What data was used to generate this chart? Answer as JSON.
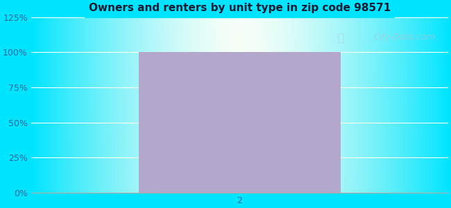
{
  "title": "Owners and renters by unit type in zip code 98571",
  "title_fontsize": 11,
  "bar_x": [
    2
  ],
  "bar_heights": [
    100
  ],
  "bar_color": "#b3a8cc",
  "bar_width": 1.45,
  "xlim": [
    0.5,
    3.5
  ],
  "ylim": [
    0,
    125
  ],
  "yticks": [
    0,
    25,
    50,
    75,
    100,
    125
  ],
  "ytick_labels": [
    "0%",
    "25%",
    "50%",
    "75%",
    "100%",
    "125%"
  ],
  "xticks": [
    2
  ],
  "xtick_labels": [
    "2"
  ],
  "background_outer": "#00e5ff",
  "grid_color": "#ffffff",
  "tick_label_color": "#336699",
  "title_color": "#1a1a2e",
  "watermark": "City-Data.com"
}
